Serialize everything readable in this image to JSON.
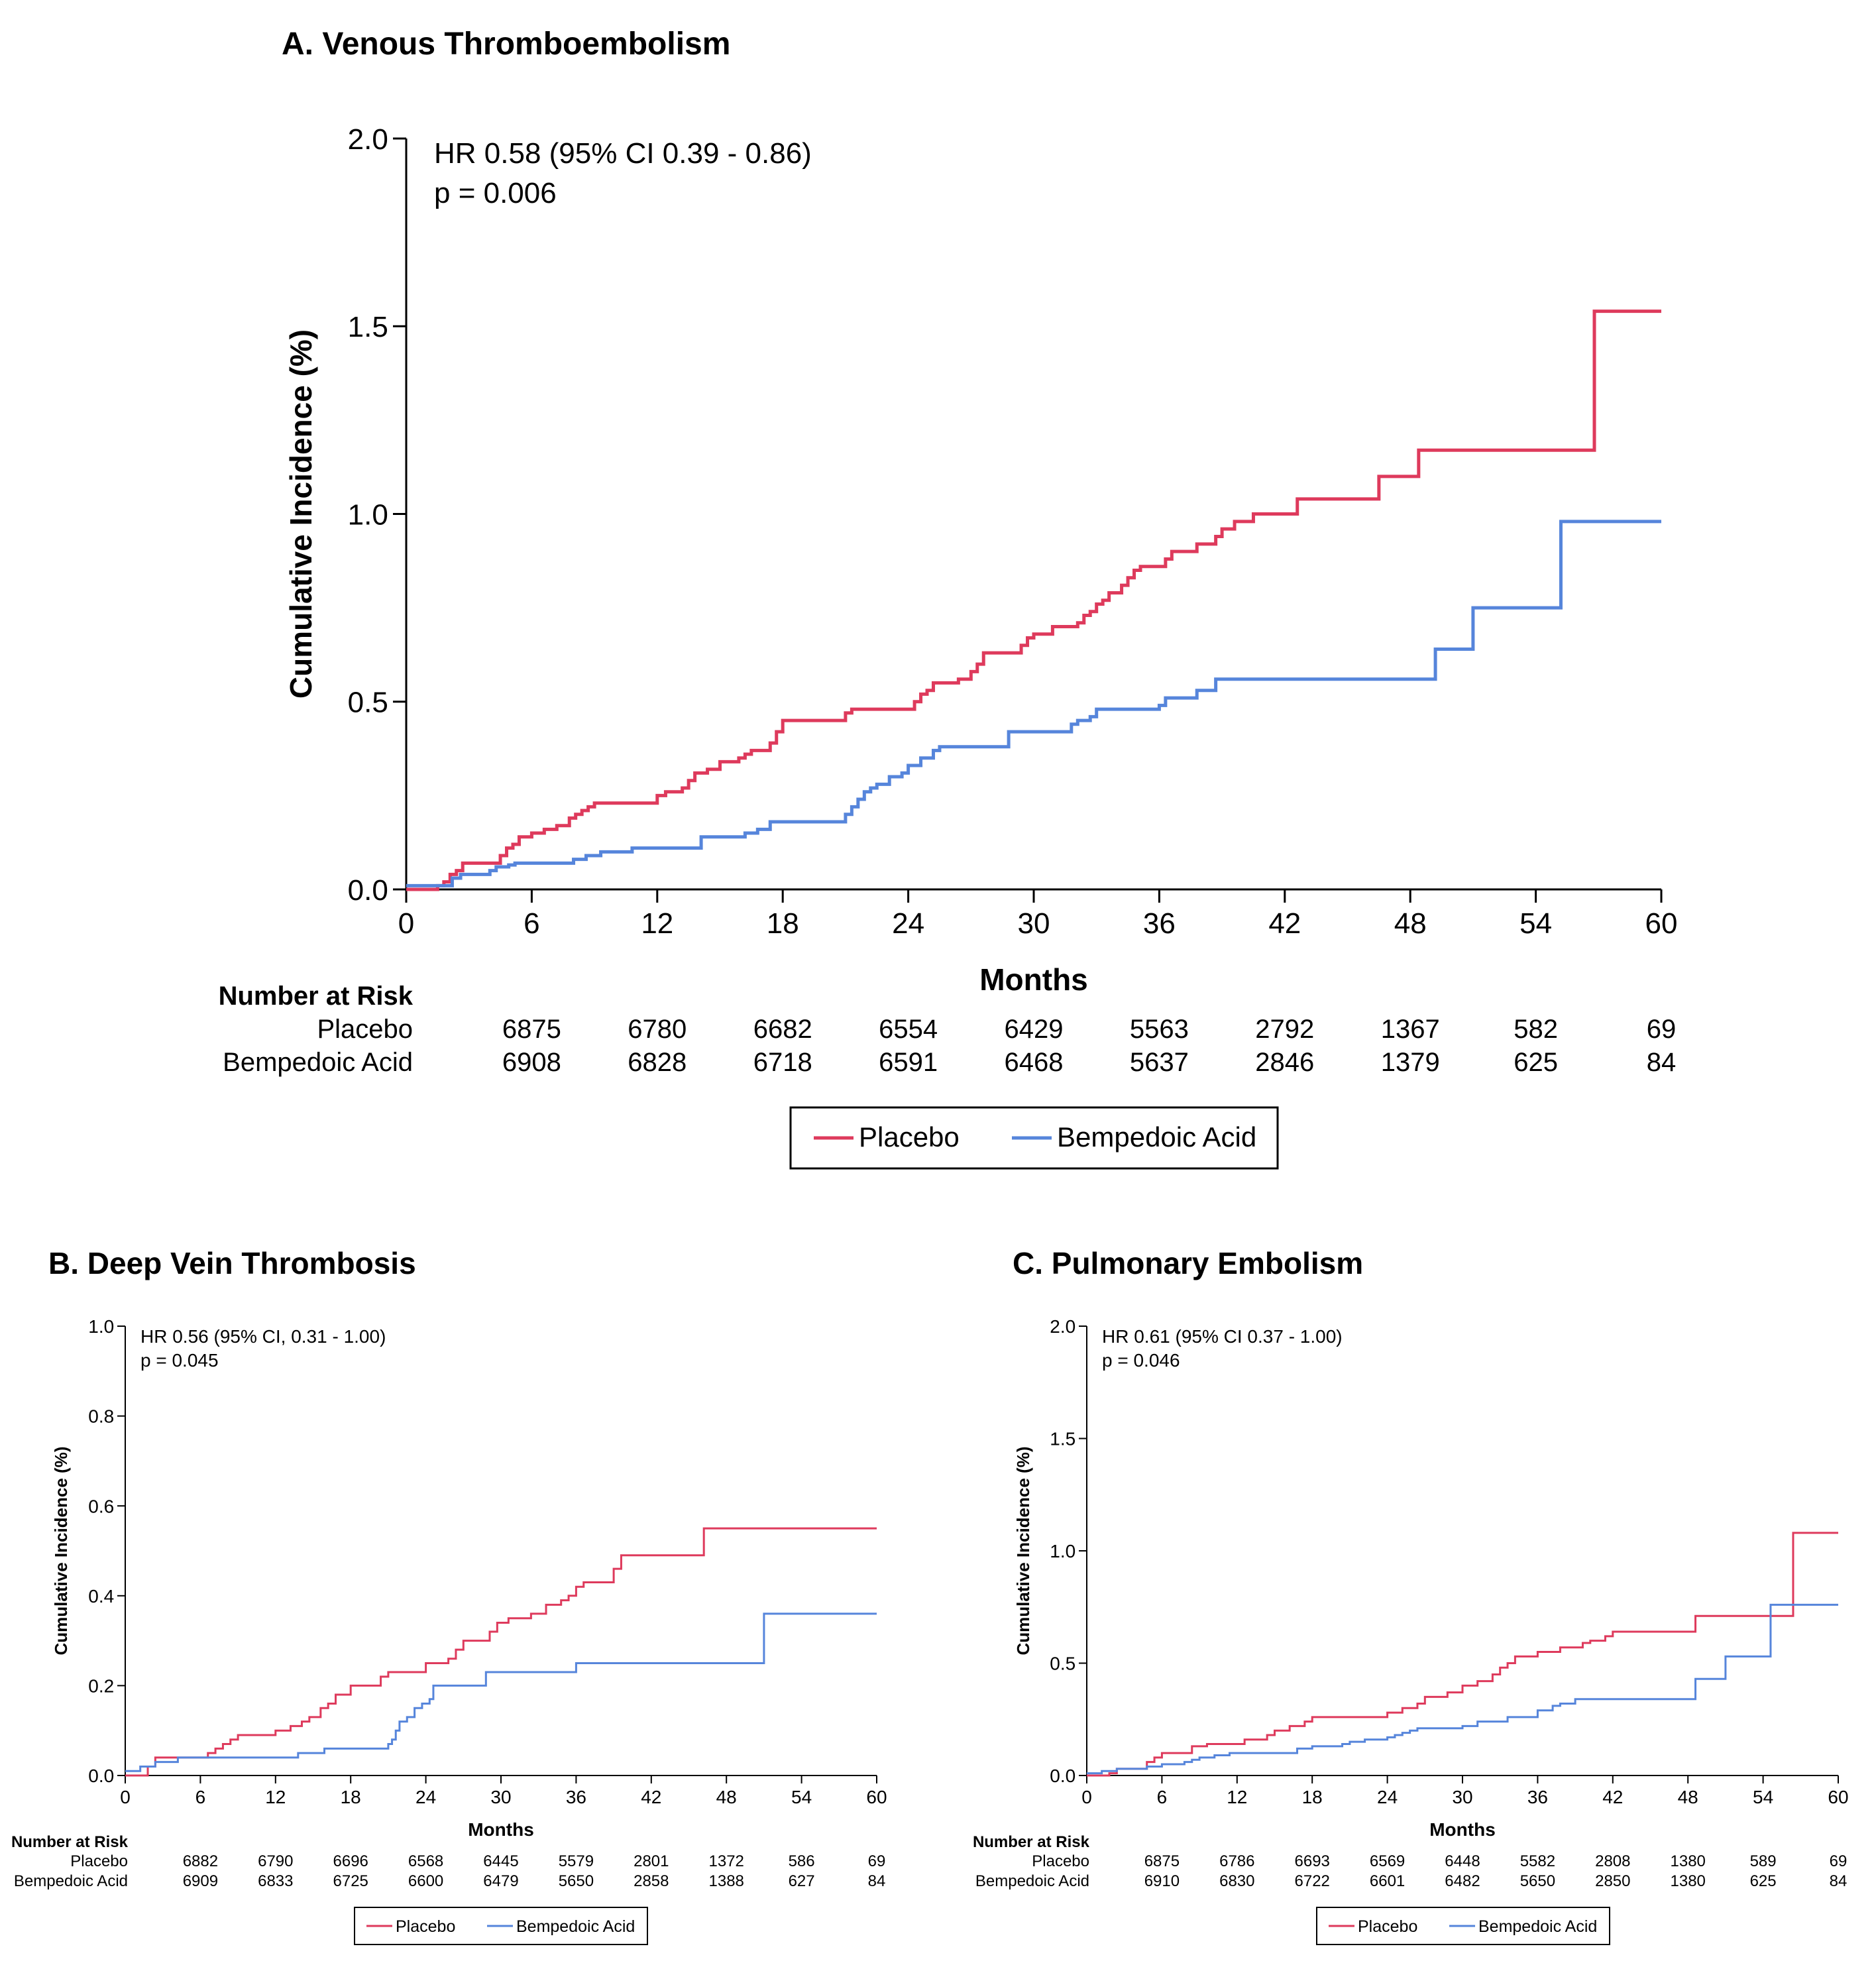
{
  "colors": {
    "placebo": "#de3a5c",
    "bempedoic": "#5685db",
    "axis": "#000000",
    "background": "#ffffff"
  },
  "chart_data": [
    {
      "id": "A",
      "type": "line",
      "step": true,
      "title": "A. Venous Thromboembolism",
      "xlabel": "Months",
      "ylabel": "Cumulative Incidence (%)",
      "xlim": [
        0,
        60
      ],
      "ylim": [
        0,
        2.0
      ],
      "xticks": [
        0,
        6,
        12,
        18,
        24,
        30,
        36,
        42,
        48,
        54,
        60
      ],
      "xtick_labels": [
        "0",
        "6",
        "12",
        "18",
        "24",
        "30",
        "36",
        "42",
        "48",
        "54",
        "60"
      ],
      "yticks": [
        0,
        0.5,
        1.0,
        1.5,
        2.0
      ],
      "ytick_labels": [
        "0.0",
        "0.5",
        "1.0",
        "1.5",
        "2.0"
      ],
      "annotation": [
        "HR 0.58 (95% CI 0.39 - 0.86)",
        "p = 0.006"
      ],
      "risk_table": {
        "header": "Number at Risk",
        "rows": [
          {
            "label": "Placebo",
            "values": [
              "6875",
              "6780",
              "6682",
              "6554",
              "6429",
              "5563",
              "2792",
              "1367",
              "582",
              "69"
            ]
          },
          {
            "label": "Bempedoic Acid",
            "values": [
              "6908",
              "6828",
              "6718",
              "6591",
              "6468",
              "5637",
              "2846",
              "1379",
              "625",
              "84"
            ]
          }
        ]
      },
      "legend": [
        "Placebo",
        "Bempedoic Acid"
      ],
      "series": [
        {
          "name": "Placebo",
          "color_key": "placebo",
          "x": [
            0,
            1.5,
            1.8,
            2.1,
            2.4,
            2.7,
            4.5,
            4.8,
            5.1,
            5.4,
            6.0,
            6.6,
            7.2,
            7.8,
            8.1,
            8.4,
            8.7,
            9.0,
            12.0,
            12.4,
            13.2,
            13.5,
            13.8,
            14.4,
            15.0,
            15.9,
            16.2,
            16.5,
            17.4,
            17.7,
            18.0,
            21.0,
            21.3,
            24.3,
            24.6,
            24.9,
            25.2,
            26.4,
            27.0,
            27.3,
            27.6,
            29.4,
            29.7,
            30.0,
            30.9,
            32.1,
            32.4,
            32.7,
            33.0,
            33.3,
            33.6,
            34.2,
            34.5,
            34.8,
            35.1,
            36.3,
            36.6,
            37.8,
            38.7,
            39.0,
            39.6,
            40.5,
            42.6,
            46.5,
            48.4,
            56.8,
            60
          ],
          "y": [
            0,
            0.01,
            0.02,
            0.04,
            0.05,
            0.07,
            0.09,
            0.11,
            0.12,
            0.14,
            0.15,
            0.16,
            0.17,
            0.19,
            0.2,
            0.21,
            0.22,
            0.23,
            0.25,
            0.26,
            0.27,
            0.29,
            0.31,
            0.32,
            0.34,
            0.35,
            0.36,
            0.37,
            0.39,
            0.42,
            0.45,
            0.47,
            0.48,
            0.5,
            0.52,
            0.53,
            0.55,
            0.56,
            0.58,
            0.6,
            0.63,
            0.65,
            0.67,
            0.68,
            0.7,
            0.71,
            0.73,
            0.74,
            0.76,
            0.77,
            0.79,
            0.81,
            0.83,
            0.85,
            0.86,
            0.88,
            0.9,
            0.92,
            0.94,
            0.96,
            0.98,
            1.0,
            1.04,
            1.1,
            1.17,
            1.54,
            1.54
          ]
        },
        {
          "name": "Bempedoic Acid",
          "color_key": "bempedoic",
          "x": [
            0,
            2.2,
            2.6,
            4.0,
            4.3,
            4.9,
            5.2,
            8.0,
            8.6,
            9.3,
            10.8,
            14.1,
            16.2,
            16.8,
            17.4,
            21.0,
            21.3,
            21.6,
            21.9,
            22.2,
            22.5,
            23.1,
            23.7,
            24.0,
            24.6,
            25.2,
            25.5,
            28.8,
            31.8,
            32.1,
            32.7,
            33.0,
            36.0,
            36.3,
            37.8,
            38.7,
            49.2,
            51.0,
            55.2,
            60
          ],
          "y": [
            0.01,
            0.03,
            0.04,
            0.05,
            0.06,
            0.065,
            0.07,
            0.08,
            0.09,
            0.1,
            0.11,
            0.14,
            0.15,
            0.16,
            0.18,
            0.2,
            0.22,
            0.24,
            0.26,
            0.27,
            0.28,
            0.3,
            0.31,
            0.33,
            0.35,
            0.37,
            0.38,
            0.42,
            0.44,
            0.45,
            0.46,
            0.48,
            0.49,
            0.51,
            0.53,
            0.56,
            0.64,
            0.75,
            0.98,
            0.98
          ]
        }
      ]
    },
    {
      "id": "B",
      "type": "line",
      "step": true,
      "title": "B. Deep Vein Thrombosis",
      "xlabel": "Months",
      "ylabel": "Cumulative Incidence (%)",
      "xlim": [
        0,
        60
      ],
      "ylim": [
        0,
        1.0
      ],
      "xticks": [
        0,
        6,
        12,
        18,
        24,
        30,
        36,
        42,
        48,
        54,
        60
      ],
      "xtick_labels": [
        "0",
        "6",
        "12",
        "18",
        "24",
        "30",
        "36",
        "42",
        "48",
        "54",
        "60"
      ],
      "yticks": [
        0,
        0.2,
        0.4,
        0.6,
        0.8,
        1.0
      ],
      "ytick_labels": [
        "0.0",
        "0.2",
        "0.4",
        "0.6",
        "0.8",
        "1.0"
      ],
      "annotation": [
        "HR 0.56 (95% CI, 0.31 - 1.00)",
        "p = 0.045"
      ],
      "risk_table": {
        "header": "Number at Risk",
        "rows": [
          {
            "label": "Placebo",
            "values": [
              "6882",
              "6790",
              "6696",
              "6568",
              "6445",
              "5579",
              "2801",
              "1372",
              "586",
              "69"
            ]
          },
          {
            "label": "Bempedoic Acid",
            "values": [
              "6909",
              "6833",
              "6725",
              "6600",
              "6479",
              "5650",
              "2858",
              "1388",
              "627",
              "84"
            ]
          }
        ]
      },
      "legend": [
        "Placebo",
        "Bempedoic Acid"
      ],
      "series": [
        {
          "name": "Placebo",
          "color_key": "placebo",
          "x": [
            0,
            1.8,
            2.4,
            6.6,
            7.2,
            7.8,
            8.4,
            9.0,
            12.0,
            13.2,
            14.1,
            14.7,
            15.6,
            16.2,
            16.8,
            18.0,
            20.4,
            21.0,
            24.0,
            25.8,
            26.4,
            27.0,
            29.1,
            29.7,
            30.6,
            32.4,
            33.6,
            34.8,
            35.4,
            36.0,
            36.6,
            39.0,
            39.6,
            46.2,
            60
          ],
          "y": [
            0,
            0.02,
            0.04,
            0.05,
            0.06,
            0.07,
            0.08,
            0.09,
            0.1,
            0.11,
            0.12,
            0.13,
            0.15,
            0.16,
            0.18,
            0.2,
            0.22,
            0.23,
            0.25,
            0.26,
            0.28,
            0.3,
            0.32,
            0.34,
            0.35,
            0.36,
            0.38,
            0.39,
            0.4,
            0.42,
            0.43,
            0.46,
            0.49,
            0.55,
            0.55
          ]
        },
        {
          "name": "Bempedoic Acid",
          "color_key": "bempedoic",
          "x": [
            0,
            1.2,
            2.4,
            4.2,
            13.8,
            15.9,
            21.0,
            21.3,
            21.6,
            21.9,
            22.5,
            23.1,
            23.7,
            24.3,
            24.6,
            28.8,
            36.0,
            51.0,
            60
          ],
          "y": [
            0.01,
            0.02,
            0.03,
            0.04,
            0.05,
            0.06,
            0.07,
            0.08,
            0.1,
            0.12,
            0.13,
            0.15,
            0.16,
            0.17,
            0.2,
            0.23,
            0.25,
            0.36,
            0.36
          ]
        }
      ]
    },
    {
      "id": "C",
      "type": "line",
      "step": true,
      "title": "C. Pulmonary Embolism",
      "xlabel": "Months",
      "ylabel": "Cumulative Incidence (%)",
      "xlim": [
        0,
        60
      ],
      "ylim": [
        0,
        2.0
      ],
      "xticks": [
        0,
        6,
        12,
        18,
        24,
        30,
        36,
        42,
        48,
        54,
        60
      ],
      "xtick_labels": [
        "0",
        "6",
        "12",
        "18",
        "24",
        "30",
        "36",
        "42",
        "48",
        "54",
        "60"
      ],
      "yticks": [
        0,
        0.5,
        1.0,
        1.5,
        2.0
      ],
      "ytick_labels": [
        "0.0",
        "0.5",
        "1.0",
        "1.5",
        "2.0"
      ],
      "annotation": [
        "HR 0.61 (95% CI 0.37 - 1.00)",
        "p = 0.046"
      ],
      "risk_table": {
        "header": "Number at Risk",
        "rows": [
          {
            "label": "Placebo",
            "values": [
              "6875",
              "6786",
              "6693",
              "6569",
              "6448",
              "5582",
              "2808",
              "1380",
              "589",
              "69"
            ]
          },
          {
            "label": "Bempedoic Acid",
            "values": [
              "6910",
              "6830",
              "6722",
              "6601",
              "6482",
              "5650",
              "2850",
              "1380",
              "625",
              "84"
            ]
          }
        ]
      },
      "legend": [
        "Placebo",
        "Bempedoic Acid"
      ],
      "series": [
        {
          "name": "Placebo",
          "color_key": "placebo",
          "x": [
            0,
            1.8,
            2.4,
            4.8,
            5.4,
            6.0,
            8.4,
            9.6,
            12.6,
            14.4,
            15.0,
            16.2,
            17.4,
            18.0,
            24.0,
            25.2,
            26.4,
            27.0,
            28.8,
            30.0,
            31.2,
            32.4,
            33.0,
            33.6,
            34.2,
            36.0,
            37.8,
            39.6,
            40.2,
            41.4,
            42.0,
            48.6,
            56.4,
            60
          ],
          "y": [
            0,
            0.01,
            0.03,
            0.06,
            0.08,
            0.1,
            0.13,
            0.14,
            0.16,
            0.18,
            0.2,
            0.22,
            0.24,
            0.26,
            0.28,
            0.3,
            0.32,
            0.35,
            0.37,
            0.4,
            0.42,
            0.45,
            0.48,
            0.5,
            0.53,
            0.55,
            0.57,
            0.59,
            0.6,
            0.62,
            0.64,
            0.71,
            1.08,
            1.08
          ]
        },
        {
          "name": "Bempedoic Acid",
          "color_key": "bempedoic",
          "x": [
            0,
            1.2,
            2.4,
            4.8,
            6.0,
            7.8,
            8.4,
            9.0,
            10.2,
            11.4,
            16.8,
            18.0,
            20.4,
            21.0,
            22.2,
            24.0,
            24.6,
            25.2,
            25.8,
            26.4,
            30.0,
            31.2,
            33.6,
            36.0,
            37.2,
            37.8,
            39.0,
            48.6,
            51.0,
            54.6,
            60
          ],
          "y": [
            0.01,
            0.02,
            0.03,
            0.04,
            0.05,
            0.06,
            0.07,
            0.08,
            0.09,
            0.1,
            0.12,
            0.13,
            0.14,
            0.15,
            0.16,
            0.17,
            0.18,
            0.19,
            0.2,
            0.21,
            0.22,
            0.24,
            0.26,
            0.29,
            0.31,
            0.32,
            0.34,
            0.43,
            0.53,
            0.76,
            0.76
          ]
        }
      ]
    }
  ]
}
